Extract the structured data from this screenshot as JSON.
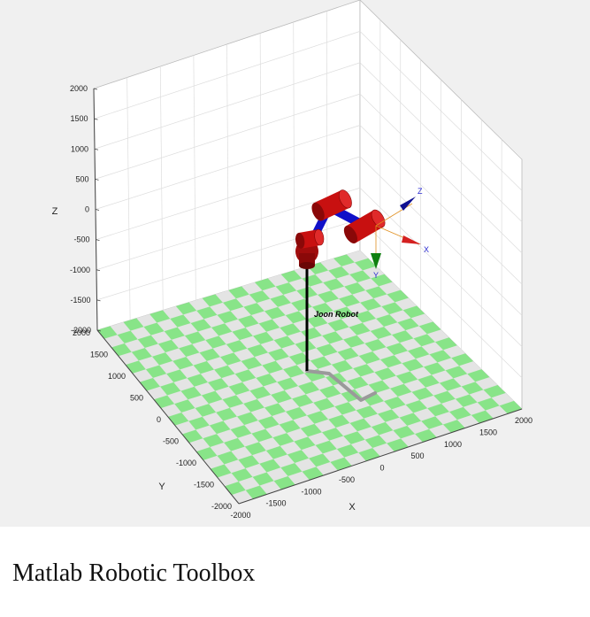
{
  "figure": {
    "robot_name": "Joon Robot",
    "axes": {
      "x_label": "X",
      "y_label": "Y",
      "z_label": "Z",
      "x_ticks": [
        "-2000",
        "-1500",
        "-1000",
        "-500",
        "0",
        "500",
        "1000",
        "1500",
        "2000"
      ],
      "y_ticks": [
        "2000",
        "1500",
        "1000",
        "500",
        "0",
        "-500",
        "-1000",
        "-1500",
        "-2000"
      ],
      "z_ticks": [
        "2000",
        "1500",
        "1000",
        "500",
        "0",
        "-500",
        "-1000",
        "-1500",
        "-2000"
      ],
      "grid": true
    },
    "floor_colors": {
      "light": "#e4e4e4",
      "dark": "#88e488"
    },
    "robot_colors": {
      "joint": "#c81010",
      "link": "#1010c8",
      "base": "#000000",
      "shadow": "#9a9a9a"
    },
    "tool_frame": {
      "x_label": "X",
      "y_label": "Y",
      "z_label": "Z",
      "x_color": "#d42020",
      "y_color": "#108010",
      "z_color": "#101090"
    }
  },
  "caption": "Matlab Robotic Toolbox"
}
